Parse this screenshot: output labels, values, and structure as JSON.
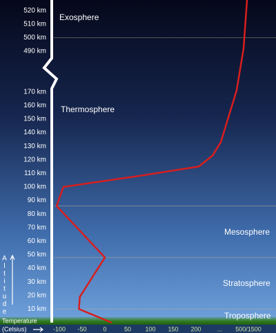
{
  "chart_data": {
    "type": "line",
    "ylabel": "Altitude",
    "xlabel": "Temperature",
    "xunit": "(Celsius)",
    "ylim": [
      0,
      528
    ],
    "ybreak": [
      175,
      485
    ],
    "yticks": [
      {
        "value": 10,
        "label": "10 km"
      },
      {
        "value": 20,
        "label": "20 km"
      },
      {
        "value": 30,
        "label": "30 km"
      },
      {
        "value": 40,
        "label": "40 km"
      },
      {
        "value": 50,
        "label": "50 km"
      },
      {
        "value": 60,
        "label": "60 km"
      },
      {
        "value": 70,
        "label": "70 km"
      },
      {
        "value": 80,
        "label": "80 km"
      },
      {
        "value": 90,
        "label": "90 km"
      },
      {
        "value": 100,
        "label": "100 km"
      },
      {
        "value": 110,
        "label": "110 km"
      },
      {
        "value": 120,
        "label": "120 km"
      },
      {
        "value": 130,
        "label": "130 km"
      },
      {
        "value": 140,
        "label": "140 km"
      },
      {
        "value": 150,
        "label": "150 km"
      },
      {
        "value": 160,
        "label": "160 km"
      },
      {
        "value": 170,
        "label": "170 km"
      },
      {
        "value": 490,
        "label": "490 km"
      },
      {
        "value": 500,
        "label": "500 km"
      },
      {
        "value": 510,
        "label": "510 km"
      },
      {
        "value": 520,
        "label": "520 km"
      }
    ],
    "xlim": [
      -120,
      1500
    ],
    "xlog_from": 200,
    "xticks": [
      -100,
      -50,
      0,
      50,
      100,
      150,
      200,
      {
        "value": 500,
        "label": "..."
      },
      {
        "value": 1500,
        "label": "500/1500"
      }
    ],
    "x": [
      15,
      -57,
      -55,
      0,
      -106,
      -91,
      73,
      222,
      377,
      520,
      954,
      1246,
      1422
    ],
    "values": [
      0,
      10,
      19,
      48,
      86,
      100,
      108,
      115,
      123,
      133,
      171,
      492,
      528
    ],
    "color": "#d81e1e",
    "layers": [
      "Exosphere",
      "Thermosphere",
      "Mesosphere",
      "Stratosphere",
      "Troposphere"
    ],
    "boundaries": [
      500,
      86,
      48,
      10
    ]
  }
}
